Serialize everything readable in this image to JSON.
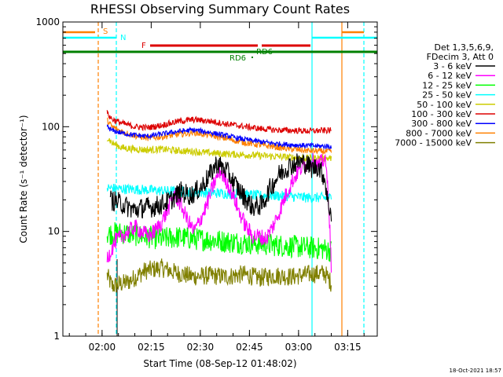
{
  "chart_data": {
    "type": "line",
    "title": "RHESSI Observing Summary Count Rates",
    "xlabel": "Start Time (08-Sep-12 01:48:02)",
    "ylabel": "Count Rate (s⁻¹ detector⁻¹)",
    "y_scale": "log",
    "ylim": [
      1,
      1000
    ],
    "xlim_minutes": [
      0,
      96
    ],
    "x_ticks": [
      {
        "label": "02:00",
        "value": 11.97
      },
      {
        "label": "02:15",
        "value": 26.97
      },
      {
        "label": "02:30",
        "value": 41.97
      },
      {
        "label": "02:45",
        "value": 56.97
      },
      {
        "label": "03:00",
        "value": 71.97
      },
      {
        "label": "03:15",
        "value": 86.97
      }
    ],
    "y_ticks": [
      {
        "label": "1",
        "value": 1
      },
      {
        "label": "10",
        "value": 10
      },
      {
        "label": "100",
        "value": 100
      },
      {
        "label": "1000",
        "value": 1000
      }
    ],
    "legend": {
      "placement": "right",
      "header": [
        "Det 1,3,5,6,9,",
        "FDecim 3, Att 0"
      ],
      "entries": [
        {
          "name": "3 - 6 keV",
          "color": "#000000"
        },
        {
          "name": "6 - 12 keV",
          "color": "#ff00ff"
        },
        {
          "name": "12 - 25 keV",
          "color": "#00ff00"
        },
        {
          "name": "25 - 50 keV",
          "color": "#00ffff"
        },
        {
          "name": "50 - 100 keV",
          "color": "#cccc00"
        },
        {
          "name": "100 - 300 keV",
          "color": "#dd0000"
        },
        {
          "name": "300 - 800 keV",
          "color": "#0000ff"
        },
        {
          "name": "800 - 7000 keV",
          "color": "#ff8000"
        },
        {
          "name": "7000 - 15000 keV",
          "color": "#808000"
        }
      ]
    },
    "flags": [
      {
        "label": "S",
        "color": "#ff8000"
      },
      {
        "label": "N",
        "color": "#00ffff"
      },
      {
        "label": "F",
        "color": "#dd0000"
      },
      {
        "label": "RD6",
        "color": "#008000"
      },
      {
        "label": "RD6",
        "color": "#008000"
      }
    ],
    "series": [
      {
        "name": "3 - 6 keV",
        "color": "#000000",
        "x": [
          14.5,
          17,
          20,
          22,
          25,
          27,
          30,
          33,
          36,
          39,
          42,
          45,
          47,
          50,
          52,
          55,
          58,
          61,
          63,
          66,
          69,
          72,
          74,
          76,
          78,
          80,
          81,
          82
        ],
        "y": [
          20,
          19,
          17,
          16,
          17,
          17,
          18,
          20,
          24,
          22,
          26,
          35,
          45,
          38,
          30,
          22,
          17,
          18,
          25,
          35,
          42,
          46,
          45,
          40,
          42,
          32,
          18,
          15
        ]
      },
      {
        "name": "6 - 12 keV",
        "color": "#ff00ff",
        "x": [
          13.5,
          16,
          18,
          20,
          22,
          24,
          26,
          28,
          30,
          32,
          34,
          36,
          38,
          40,
          42,
          44,
          46,
          48,
          50,
          52,
          54,
          56,
          58,
          60,
          62,
          64,
          66,
          68,
          70,
          72,
          74,
          76,
          78,
          80,
          81,
          82
        ],
        "y": [
          5.5,
          8,
          9,
          10,
          11,
          10,
          9,
          10,
          12,
          16,
          23,
          18,
          13,
          10,
          13,
          18,
          28,
          38,
          30,
          22,
          15,
          11,
          9,
          9,
          8.5,
          11,
          15,
          22,
          30,
          38,
          44,
          48,
          42,
          50,
          25,
          4.5
        ]
      },
      {
        "name": "12 - 25 keV",
        "color": "#00ff00",
        "x": [
          13.5,
          18,
          25,
          30,
          35,
          40,
          45,
          50,
          55,
          60,
          65,
          70,
          75,
          80,
          82
        ],
        "y": [
          9.5,
          9.7,
          9,
          8.5,
          8.8,
          8.5,
          8.3,
          8,
          7.8,
          7.6,
          7.4,
          7.2,
          7,
          6.8,
          6.5
        ]
      },
      {
        "name": "25 - 50 keV",
        "color": "#00ffff",
        "x": [
          13.5,
          18,
          25,
          30,
          35,
          40,
          45,
          50,
          55,
          60,
          65,
          70,
          75,
          80,
          82
        ],
        "y": [
          26,
          25.5,
          25,
          24.5,
          24,
          23.8,
          23.5,
          23,
          22.5,
          22,
          22,
          21.5,
          21,
          21,
          21
        ]
      },
      {
        "name": "50 - 100 keV",
        "color": "#cccc00",
        "x": [
          13.5,
          15,
          18,
          22,
          26,
          30,
          35,
          40,
          45,
          50,
          55,
          60,
          65,
          70,
          75,
          80,
          82
        ],
        "y": [
          80,
          70,
          63,
          61,
          60,
          61,
          59,
          58,
          56,
          55,
          54,
          53,
          52,
          51,
          50,
          50,
          50
        ]
      },
      {
        "name": "100 - 300 keV",
        "color": "#dd0000",
        "x": [
          13.5,
          15,
          18,
          22,
          26,
          30,
          35,
          40,
          45,
          50,
          55,
          60,
          65,
          70,
          75,
          80,
          82
        ],
        "y": [
          135,
          118,
          108,
          100,
          98,
          103,
          112,
          117,
          113,
          106,
          101,
          96,
          93,
          92,
          91,
          92,
          92
        ]
      },
      {
        "name": "300 - 800 keV",
        "color": "#0000ff",
        "x": [
          13.5,
          15,
          18,
          22,
          26,
          30,
          35,
          40,
          45,
          50,
          55,
          60,
          65,
          70,
          75,
          80,
          82
        ],
        "y": [
          100,
          92,
          87,
          83,
          81,
          85,
          90,
          93,
          88,
          82,
          76,
          72,
          69,
          67,
          66,
          65,
          65
        ]
      },
      {
        "name": "800 - 7000 keV",
        "color": "#ff8000",
        "x": [
          13.5,
          15,
          18,
          22,
          26,
          30,
          35,
          40,
          45,
          50,
          55,
          60,
          65,
          70,
          75,
          80,
          82
        ],
        "y": [
          115,
          100,
          90,
          82,
          78,
          80,
          84,
          88,
          83,
          77,
          71,
          67,
          64,
          61,
          59,
          58,
          58
        ]
      },
      {
        "name": "7000 - 15000 keV",
        "color": "#808000",
        "x": [
          13.5,
          15,
          20,
          25,
          30,
          35,
          40,
          45,
          50,
          55,
          60,
          65,
          70,
          75,
          80,
          82
        ],
        "y": [
          3.8,
          3,
          3.3,
          4.2,
          4.5,
          4,
          3.7,
          3.8,
          3.7,
          3.9,
          3.6,
          3.8,
          3.7,
          3.9,
          4,
          3.2
        ]
      }
    ]
  },
  "timestamp": "18-Oct-2021 18:57"
}
